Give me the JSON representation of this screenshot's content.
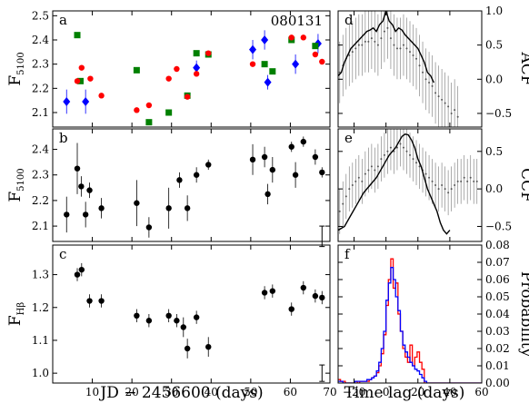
{
  "figure": {
    "xlabel_left": "JD  −  2456600 (days)",
    "xlabel_right": "Time lag (days)"
  },
  "chart_data": [
    {
      "id": "a",
      "type": "scatter",
      "panel_label": "a",
      "annotation": "080131",
      "ylabel": "F",
      "ylabel_sub": "5100",
      "xlim": [
        0,
        70
      ],
      "ylim": [
        2.04,
        2.52
      ],
      "xticks": [
        10,
        20,
        30,
        40,
        50,
        60,
        70
      ],
      "yticks": [
        2.1,
        2.2,
        2.3,
        2.4,
        2.5
      ],
      "show_xticklabels": false,
      "series": [
        {
          "marker": "diamond",
          "color": "#0000ff",
          "points": [
            {
              "x": 3.5,
              "y": 2.145,
              "e": 0.05
            },
            {
              "x": 8.3,
              "y": 2.145,
              "e": 0.05
            },
            {
              "x": 36.3,
              "y": 2.285,
              "e": 0.03
            },
            {
              "x": 50.5,
              "y": 2.36,
              "e": 0.04
            },
            {
              "x": 53.5,
              "y": 2.4,
              "e": 0.04
            },
            {
              "x": 54.3,
              "y": 2.225,
              "e": 0.03
            },
            {
              "x": 61.3,
              "y": 2.3,
              "e": 0.04
            },
            {
              "x": 67.0,
              "y": 2.385,
              "e": 0.04
            }
          ]
        },
        {
          "marker": "square",
          "color": "#008000",
          "points": [
            {
              "x": 6.2,
              "y": 2.42
            },
            {
              "x": 7.0,
              "y": 2.23
            },
            {
              "x": 21.2,
              "y": 2.275
            },
            {
              "x": 24.3,
              "y": 2.06
            },
            {
              "x": 29.3,
              "y": 2.1
            },
            {
              "x": 34.0,
              "y": 2.17
            },
            {
              "x": 36.3,
              "y": 2.345
            },
            {
              "x": 39.3,
              "y": 2.34
            },
            {
              "x": 53.5,
              "y": 2.3
            },
            {
              "x": 55.5,
              "y": 2.27
            },
            {
              "x": 60.3,
              "y": 2.4
            },
            {
              "x": 66.3,
              "y": 2.375
            }
          ]
        },
        {
          "marker": "circle",
          "color": "#ff0000",
          "points": [
            {
              "x": 6.2,
              "y": 2.23
            },
            {
              "x": 7.3,
              "y": 2.285
            },
            {
              "x": 9.5,
              "y": 2.24
            },
            {
              "x": 12.3,
              "y": 2.17
            },
            {
              "x": 21.2,
              "y": 2.11
            },
            {
              "x": 24.3,
              "y": 2.13
            },
            {
              "x": 29.3,
              "y": 2.24
            },
            {
              "x": 31.3,
              "y": 2.28
            },
            {
              "x": 34.0,
              "y": 2.165
            },
            {
              "x": 36.3,
              "y": 2.26
            },
            {
              "x": 39.3,
              "y": 2.345
            },
            {
              "x": 50.5,
              "y": 2.3
            },
            {
              "x": 60.3,
              "y": 2.41
            },
            {
              "x": 63.3,
              "y": 2.41
            },
            {
              "x": 66.3,
              "y": 2.34
            },
            {
              "x": 68.0,
              "y": 2.31
            }
          ]
        }
      ]
    },
    {
      "id": "b",
      "type": "scatter",
      "panel_label": "b",
      "ylabel": "F",
      "ylabel_sub": "5100",
      "xlim": [
        0,
        70
      ],
      "ylim": [
        2.04,
        2.48
      ],
      "xticks": [
        10,
        20,
        30,
        40,
        50,
        60,
        70
      ],
      "yticks": [
        2.1,
        2.2,
        2.3,
        2.4
      ],
      "show_xticklabels": false,
      "typical_error": {
        "x": 68.0,
        "y": 2.06,
        "e": 0.04
      },
      "series": [
        {
          "marker": "circle",
          "color": "#000000",
          "points": [
            {
              "x": 3.5,
              "y": 2.145,
              "e": 0.07
            },
            {
              "x": 6.2,
              "y": 2.325,
              "e": 0.1
            },
            {
              "x": 7.2,
              "y": 2.255,
              "e": 0.04
            },
            {
              "x": 8.3,
              "y": 2.145,
              "e": 0.05
            },
            {
              "x": 9.3,
              "y": 2.24,
              "e": 0.03
            },
            {
              "x": 12.3,
              "y": 2.17,
              "e": 0.04
            },
            {
              "x": 21.2,
              "y": 2.19,
              "e": 0.09
            },
            {
              "x": 24.3,
              "y": 2.095,
              "e": 0.04
            },
            {
              "x": 29.3,
              "y": 2.17,
              "e": 0.08
            },
            {
              "x": 32.0,
              "y": 2.28,
              "e": 0.03
            },
            {
              "x": 34.0,
              "y": 2.17,
              "e": 0.05
            },
            {
              "x": 36.3,
              "y": 2.3,
              "e": 0.03
            },
            {
              "x": 39.3,
              "y": 2.34,
              "e": 0.02
            },
            {
              "x": 50.5,
              "y": 2.36,
              "e": 0.06
            },
            {
              "x": 53.5,
              "y": 2.37,
              "e": 0.04
            },
            {
              "x": 54.3,
              "y": 2.225,
              "e": 0.04
            },
            {
              "x": 55.5,
              "y": 2.32,
              "e": 0.05
            },
            {
              "x": 60.3,
              "y": 2.41,
              "e": 0.02
            },
            {
              "x": 61.3,
              "y": 2.3,
              "e": 0.05
            },
            {
              "x": 63.3,
              "y": 2.43,
              "e": 0.02
            },
            {
              "x": 66.3,
              "y": 2.37,
              "e": 0.03
            },
            {
              "x": 68.0,
              "y": 2.31,
              "e": 0.02
            }
          ]
        }
      ]
    },
    {
      "id": "c",
      "type": "scatter",
      "panel_label": "c",
      "ylabel": "F",
      "ylabel_sub": "Hβ",
      "xlim": [
        0,
        70
      ],
      "ylim": [
        0.97,
        1.39
      ],
      "xticks": [
        10,
        20,
        30,
        40,
        50,
        60,
        70
      ],
      "yticks": [
        1.0,
        1.1,
        1.2,
        1.3
      ],
      "show_xticklabels": true,
      "typical_error": {
        "x": 68.0,
        "y": 1.0,
        "e": 0.025
      },
      "series": [
        {
          "marker": "circle",
          "color": "#000000",
          "points": [
            {
              "x": 6.2,
              "y": 1.3,
              "e": 0.02
            },
            {
              "x": 7.3,
              "y": 1.315,
              "e": 0.02
            },
            {
              "x": 9.3,
              "y": 1.22,
              "e": 0.02
            },
            {
              "x": 12.3,
              "y": 1.22,
              "e": 0.02
            },
            {
              "x": 21.2,
              "y": 1.175,
              "e": 0.02
            },
            {
              "x": 24.3,
              "y": 1.16,
              "e": 0.02
            },
            {
              "x": 29.3,
              "y": 1.175,
              "e": 0.02
            },
            {
              "x": 31.3,
              "y": 1.16,
              "e": 0.02
            },
            {
              "x": 33.0,
              "y": 1.14,
              "e": 0.03
            },
            {
              "x": 34.0,
              "y": 1.075,
              "e": 0.03
            },
            {
              "x": 36.3,
              "y": 1.17,
              "e": 0.02
            },
            {
              "x": 39.3,
              "y": 1.08,
              "e": 0.03
            },
            {
              "x": 53.5,
              "y": 1.245,
              "e": 0.02
            },
            {
              "x": 55.5,
              "y": 1.25,
              "e": 0.02
            },
            {
              "x": 60.3,
              "y": 1.195,
              "e": 0.02
            },
            {
              "x": 63.3,
              "y": 1.26,
              "e": 0.02
            },
            {
              "x": 66.3,
              "y": 1.235,
              "e": 0.02
            },
            {
              "x": 68.0,
              "y": 1.23,
              "e": 0.02
            }
          ]
        }
      ]
    },
    {
      "id": "d",
      "type": "line",
      "panel_label": "d",
      "ylabel": "ACF",
      "xlim": [
        -30,
        60
      ],
      "ylim": [
        -0.7,
        1.0
      ],
      "xticks": [
        -20,
        0,
        20,
        40,
        60
      ],
      "yticks": [
        -0.5,
        0.0,
        0.5,
        1.0
      ],
      "show_xticklabels": false,
      "line": {
        "x": [
          -30,
          -28,
          -26,
          -24,
          -22,
          -20,
          -18,
          -16,
          -14,
          -12,
          -10,
          -8,
          -6,
          -4,
          -2,
          0,
          2,
          4,
          6,
          8,
          10,
          12,
          14,
          16,
          18,
          20,
          22,
          24,
          26,
          28,
          30
        ],
        "y": [
          0.05,
          0.1,
          0.25,
          0.35,
          0.45,
          0.5,
          0.55,
          0.6,
          0.65,
          0.7,
          0.72,
          0.75,
          0.7,
          0.8,
          0.85,
          1.0,
          0.85,
          0.8,
          0.7,
          0.75,
          0.72,
          0.65,
          0.6,
          0.55,
          0.5,
          0.45,
          0.35,
          0.25,
          0.1,
          0.05,
          -0.05
        ]
      },
      "points": {
        "x": [
          -29,
          -27,
          -25,
          -23,
          -21,
          -19,
          -17,
          -15,
          -13,
          -11,
          -9,
          -7,
          -5,
          -3,
          -1,
          1,
          3,
          5,
          7,
          9,
          11,
          13,
          15,
          17,
          19,
          21,
          23,
          25,
          27,
          29,
          31,
          33,
          35,
          37,
          39,
          41,
          43,
          45
        ],
        "y": [
          0.1,
          0.2,
          0.3,
          0.35,
          0.4,
          0.45,
          0.5,
          0.5,
          0.55,
          0.55,
          0.6,
          0.55,
          0.5,
          0.6,
          0.7,
          0.75,
          0.6,
          0.5,
          0.45,
          0.45,
          0.5,
          0.45,
          0.4,
          0.35,
          0.3,
          0.2,
          0.1,
          0.0,
          -0.05,
          -0.1,
          -0.2,
          -0.25,
          -0.3,
          -0.35,
          -0.4,
          -0.5,
          -0.45,
          -0.55
        ],
        "e": 0.45
      }
    },
    {
      "id": "e",
      "type": "line",
      "panel_label": "e",
      "ylabel": "CCF",
      "xlim": [
        -30,
        60
      ],
      "ylim": [
        -0.7,
        0.8
      ],
      "xticks": [
        -20,
        0,
        20,
        40,
        60
      ],
      "yticks": [
        -0.5,
        0.0,
        0.5
      ],
      "show_xticklabels": false,
      "line": {
        "x": [
          -30,
          -26,
          -22,
          -18,
          -14,
          -10,
          -6,
          -2,
          2,
          6,
          10,
          12,
          14,
          16,
          18,
          20,
          22,
          24,
          26,
          28,
          30,
          32,
          34,
          36,
          38,
          40
        ],
        "y": [
          -0.55,
          -0.5,
          -0.35,
          -0.2,
          -0.05,
          0.05,
          0.15,
          0.3,
          0.45,
          0.55,
          0.7,
          0.73,
          0.72,
          0.65,
          0.55,
          0.4,
          0.3,
          0.15,
          0.0,
          -0.1,
          -0.2,
          -0.3,
          -0.45,
          -0.55,
          -0.6,
          -0.55
        ]
      },
      "points": {
        "x": [
          -29,
          -27,
          -25,
          -23,
          -21,
          -19,
          -17,
          -15,
          -13,
          -11,
          -9,
          -7,
          -5,
          -3,
          -1,
          1,
          3,
          5,
          7,
          9,
          11,
          13,
          15,
          17,
          19,
          21,
          23,
          25,
          27,
          29,
          31,
          33,
          35,
          37,
          39,
          41,
          43,
          45,
          47,
          49,
          51,
          53,
          55,
          57
        ],
        "y": [
          -0.3,
          -0.2,
          -0.1,
          0.0,
          0.05,
          0.1,
          0.15,
          0.1,
          0.2,
          0.25,
          0.3,
          0.25,
          0.3,
          0.4,
          0.45,
          0.5,
          0.55,
          0.5,
          0.55,
          0.6,
          0.55,
          0.5,
          0.45,
          0.4,
          0.35,
          0.3,
          0.25,
          0.2,
          0.15,
          0.1,
          0.05,
          0.0,
          0.05,
          0.0,
          -0.05,
          0.0,
          0.05,
          0.1,
          0.1,
          0.15,
          0.1,
          0.15,
          0.1,
          0.1
        ],
        "e": 0.3
      }
    },
    {
      "id": "f",
      "type": "histogram",
      "panel_label": "f",
      "ylabel": "Probability",
      "xlim": [
        -30,
        60
      ],
      "ylim": [
        0.0,
        0.08
      ],
      "xticks": [
        -20,
        0,
        20,
        40,
        60
      ],
      "yticks": [
        0.0,
        0.01,
        0.02,
        0.03,
        0.04,
        0.05,
        0.06,
        0.07,
        0.08
      ],
      "show_xticklabels": true,
      "bin_width": 1.5,
      "bin_start": -30,
      "series": [
        {
          "color": "#ff0000",
          "values": [
            0.002,
            0.001,
            0.001,
            0.0,
            0.0,
            0.0,
            0.0,
            0.001,
            0.0,
            0.001,
            0.001,
            0.001,
            0.001,
            0.002,
            0.003,
            0.004,
            0.006,
            0.01,
            0.017,
            0.028,
            0.045,
            0.06,
            0.072,
            0.055,
            0.058,
            0.04,
            0.03,
            0.02,
            0.015,
            0.012,
            0.022,
            0.01,
            0.015,
            0.018,
            0.012,
            0.008,
            0.0,
            0.0,
            0.0,
            0.0,
            0.0,
            0.0,
            0.0,
            0.0,
            0.0,
            0.0,
            0.0,
            0.0,
            0.0,
            0.0,
            0.0,
            0.0,
            0.0,
            0.0,
            0.0,
            0.0,
            0.0,
            0.0,
            0.0,
            0.0
          ]
        },
        {
          "color": "#0000ff",
          "values": [
            0.001,
            0.001,
            0.0,
            0.0,
            0.0,
            0.0,
            0.0,
            0.001,
            0.001,
            0.001,
            0.001,
            0.001,
            0.002,
            0.002,
            0.003,
            0.004,
            0.007,
            0.012,
            0.02,
            0.03,
            0.048,
            0.058,
            0.067,
            0.06,
            0.05,
            0.042,
            0.03,
            0.022,
            0.018,
            0.015,
            0.012,
            0.01,
            0.008,
            0.007,
            0.005,
            0.003,
            0.001,
            0.0,
            0.0,
            0.0,
            0.0,
            0.0,
            0.0,
            0.0,
            0.0,
            0.0,
            0.0,
            0.0,
            0.0,
            0.0,
            0.0,
            0.0,
            0.0,
            0.0,
            0.0,
            0.0,
            0.0,
            0.0,
            0.0,
            0.0
          ]
        }
      ]
    }
  ]
}
